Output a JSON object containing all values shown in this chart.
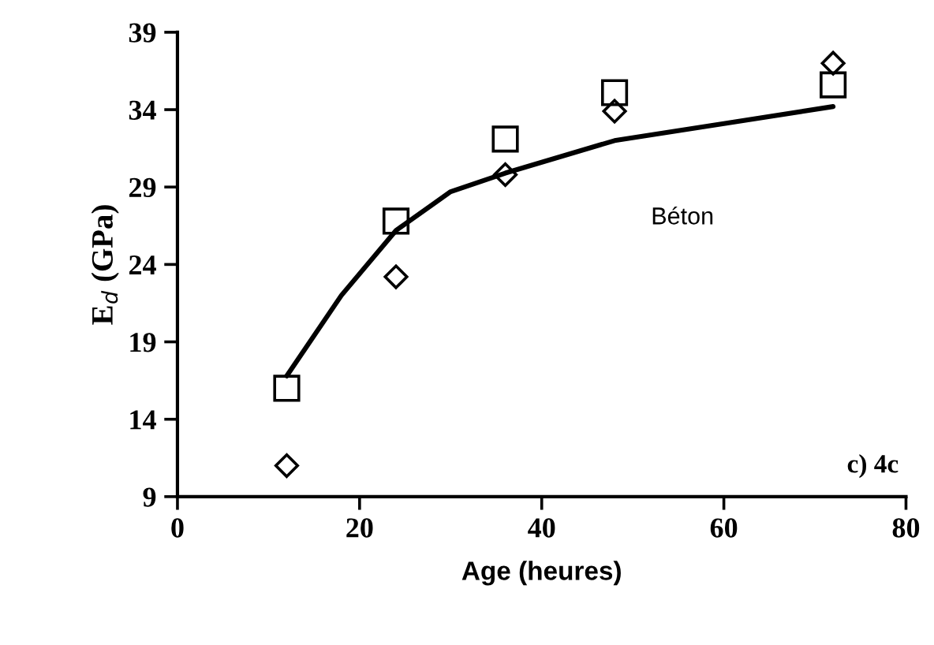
{
  "chart_data": {
    "type": "scatter",
    "xlabel": "Age (heures)",
    "ylabel": "E$_{d}$ (GPa)",
    "xlim": [
      0,
      80
    ],
    "ylim": [
      9,
      39
    ],
    "xticks": [
      0,
      20,
      40,
      60,
      80
    ],
    "yticks": [
      9,
      14,
      19,
      24,
      29,
      34,
      39
    ],
    "grid": false,
    "series": [
      {
        "marker": "square",
        "color": "#000000",
        "x": [
          12,
          24,
          36,
          48,
          72
        ],
        "values": [
          16.0,
          26.8,
          32.1,
          35.1,
          35.6
        ]
      },
      {
        "marker": "diamond",
        "color": "#000000",
        "x": [
          12,
          24,
          36,
          48,
          72
        ],
        "values": [
          11.0,
          23.2,
          29.8,
          33.9,
          37.0
        ]
      },
      {
        "type": "line",
        "marker": "none",
        "color": "#000000",
        "x": [
          12,
          18,
          24,
          30,
          36,
          48,
          60,
          72
        ],
        "values": [
          16.8,
          22.0,
          26.2,
          28.7,
          29.9,
          32.0,
          33.1,
          34.2
        ]
      }
    ],
    "annotations": [
      "Béton",
      "c) 4c"
    ]
  }
}
